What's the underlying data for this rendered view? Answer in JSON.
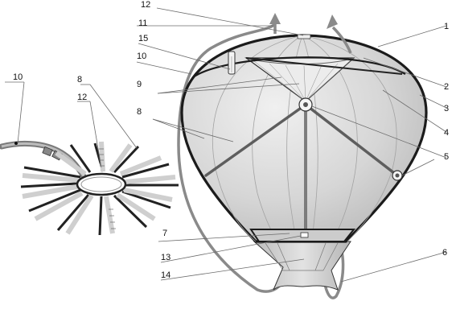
{
  "labels": {
    "l1": "1",
    "l2": "2",
    "l3": "3",
    "l4": "4",
    "l5": "5",
    "l6": "6",
    "l7": "7",
    "l8_left": "8",
    "l8_mid": "8",
    "l9": "9",
    "l10_left": "10",
    "l10_mid": "10",
    "l11": "11",
    "l12_top": "12",
    "l12_left": "12",
    "l13": "13",
    "l14": "14",
    "l15": "15"
  },
  "colors": {
    "envelope_fill": "#d8d8d8",
    "envelope_stroke": "#222222",
    "gore_line": "#a8a8a8",
    "rib": "#6a6a6a",
    "rope": "#8a8a8a",
    "panel": "#bdbdbd",
    "crown": "#ececec"
  }
}
